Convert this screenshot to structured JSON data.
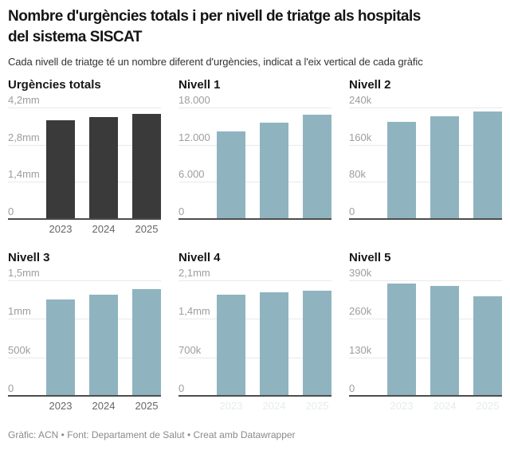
{
  "header": {
    "title_line1": "Nombre d'urgències totals i per nivell de triatge als hospitals",
    "title_line2": "del sistema SISCAT",
    "subtitle": "Cada nivell de triatge té un nombre diferent d'urgències, indicat a l'eix vertical de cada gràfic"
  },
  "footer": {
    "attribution": "Gràfic: ACN • Font: Departament de Salut • Creat amb Datawrapper"
  },
  "colors": {
    "dark_bar": "#3a3a3a",
    "blue_bar": "#8fb4c0",
    "gridline": "#e9e9e9",
    "baseline": "#4d4d4d"
  },
  "chart_data": [
    {
      "type": "bar",
      "title": "Urgències totals",
      "categories": [
        "2023",
        "2024",
        "2025"
      ],
      "values": [
        3720000,
        3840000,
        3950000
      ],
      "ymax": 4200000,
      "ylim": [
        0,
        4200000
      ],
      "ytick_labels": [
        "4,2mm",
        "2,8mm",
        "1,4mm",
        "0"
      ],
      "bar_color": "#3a3a3a",
      "x_labels": "visible",
      "grid": true,
      "legend": "none"
    },
    {
      "type": "bar",
      "title": "Nivell 1",
      "categories": [
        "2023",
        "2024",
        "2025"
      ],
      "values": [
        14100,
        15550,
        16800
      ],
      "ymax": 18000,
      "ylim": [
        0,
        18000
      ],
      "ytick_labels": [
        "18.000",
        "12.000",
        "6.000",
        "0"
      ],
      "bar_color": "#8fb4c0",
      "x_labels": "none",
      "grid": true,
      "legend": "none"
    },
    {
      "type": "bar",
      "title": "Nivell 2",
      "categories": [
        "2023",
        "2024",
        "2025"
      ],
      "values": [
        209000,
        222000,
        232000
      ],
      "ymax": 240000,
      "ylim": [
        0,
        240000
      ],
      "ytick_labels": [
        "240k",
        "160k",
        "80k",
        "0"
      ],
      "bar_color": "#8fb4c0",
      "x_labels": "none",
      "grid": true,
      "legend": "none"
    },
    {
      "type": "bar",
      "title": "Nivell 3",
      "categories": [
        "2023",
        "2024",
        "2025"
      ],
      "values": [
        1250000,
        1315000,
        1385000
      ],
      "ymax": 1500000,
      "ylim": [
        0,
        1500000
      ],
      "ytick_labels": [
        "1,5mm",
        "1mm",
        "500k",
        "0"
      ],
      "bar_color": "#8fb4c0",
      "x_labels": "visible",
      "grid": true,
      "legend": "none"
    },
    {
      "type": "bar",
      "title": "Nivell 4",
      "categories": [
        "2023",
        "2024",
        "2025"
      ],
      "values": [
        1845000,
        1880000,
        1910000
      ],
      "ymax": 2100000,
      "ylim": [
        0,
        2100000
      ],
      "ytick_labels": [
        "2,1mm",
        "1,4mm",
        "700k",
        "0"
      ],
      "bar_color": "#8fb4c0",
      "x_labels": "faint",
      "grid": true,
      "legend": "none"
    },
    {
      "type": "bar",
      "title": "Nivell 5",
      "categories": [
        "2023",
        "2024",
        "2025"
      ],
      "values": [
        379000,
        371000,
        337000
      ],
      "ymax": 390000,
      "ylim": [
        0,
        390000
      ],
      "ytick_labels": [
        "390k",
        "260k",
        "130k",
        "0"
      ],
      "bar_color": "#8fb4c0",
      "x_labels": "faint",
      "grid": true,
      "legend": "none"
    }
  ]
}
